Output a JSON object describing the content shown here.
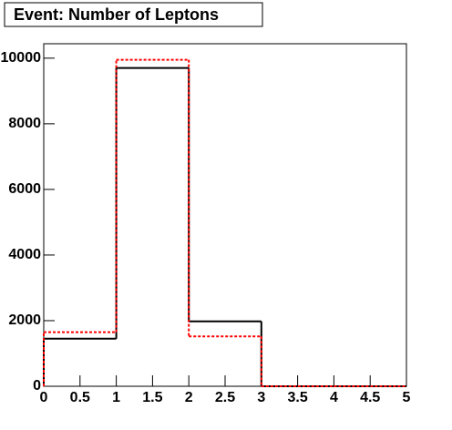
{
  "chart_data": {
    "type": "histogram",
    "title": "Event: Number of Leptons",
    "bins": [
      0,
      1,
      2,
      3,
      4,
      5
    ],
    "series": [
      {
        "color": "#000000",
        "dash": "solid",
        "values": [
          1450,
          9700,
          1980,
          0,
          0
        ]
      },
      {
        "color": "#ff0000",
        "dash": "dashed",
        "values": [
          1650,
          9950,
          1520,
          0,
          0
        ]
      }
    ],
    "xlim": [
      0,
      5
    ],
    "xticks": [
      0,
      0.5,
      1,
      1.5,
      2,
      2.5,
      3,
      3.5,
      4,
      4.5,
      5
    ],
    "ylim": [
      0,
      10440
    ],
    "yticks": [
      0,
      2000,
      4000,
      6000,
      8000,
      10000
    ]
  }
}
